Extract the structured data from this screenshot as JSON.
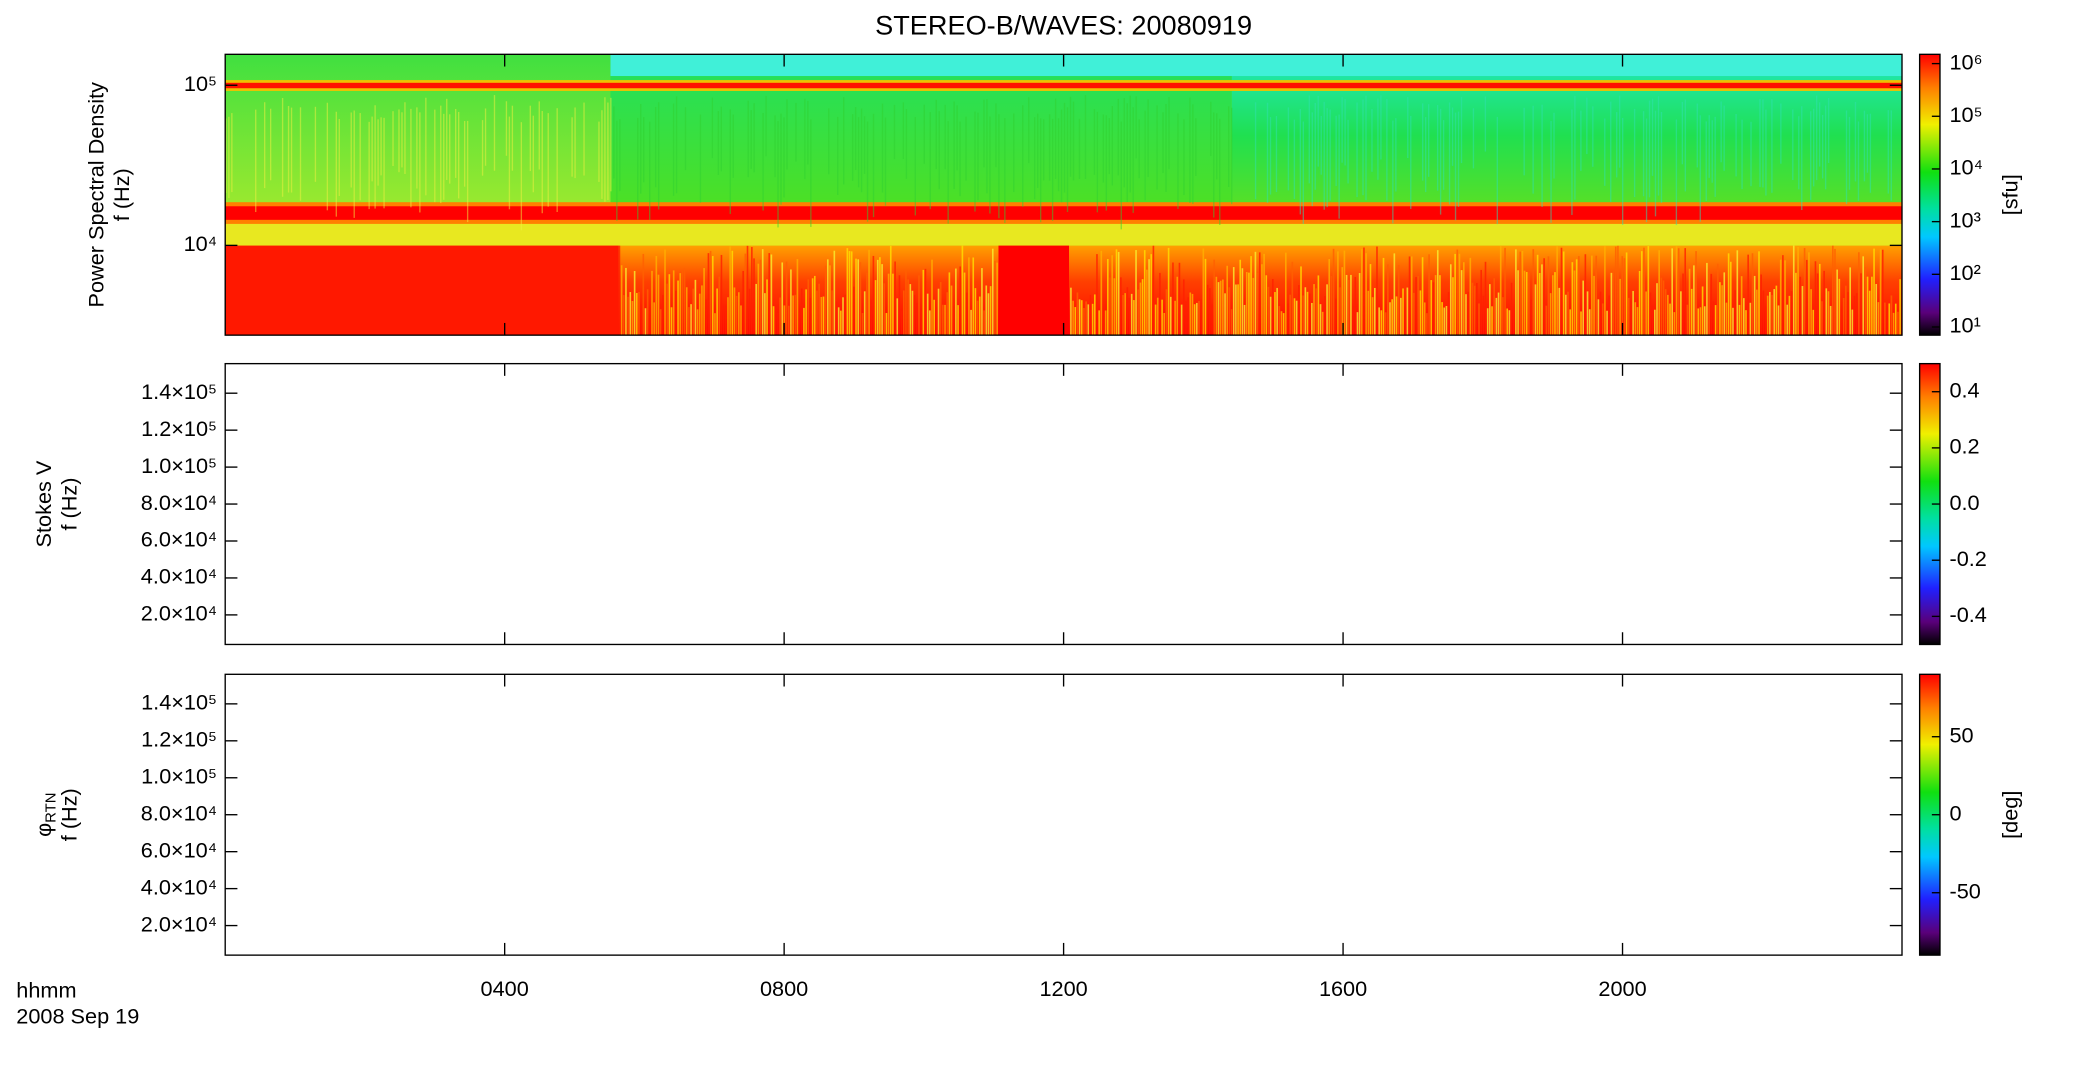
{
  "title": "STEREO-B/WAVES: 20080919",
  "x_axis_label": "hhmm",
  "date_label": "2008 Sep 19",
  "chart_data": [
    {
      "type": "heatmap",
      "ylabel": "Power Spectral Density",
      "ylabel2": "f (Hz)",
      "ylim": [
        2750,
        156000
      ],
      "ylog": true,
      "yticks": [
        {
          "value": 10000,
          "label": "10⁴"
        },
        {
          "value": 100000,
          "label": "10⁵"
        }
      ],
      "colorbar": {
        "lim": [
          7,
          1500000
        ],
        "log": true,
        "label": "[sfu]",
        "ticks": [
          {
            "value": 10,
            "label": "10¹"
          },
          {
            "value": 100,
            "label": "10²"
          },
          {
            "value": 1000,
            "label": "10³"
          },
          {
            "value": 10000,
            "label": "10⁴"
          },
          {
            "value": 100000,
            "label": "10⁵"
          },
          {
            "value": 1000000,
            "label": "10⁶"
          }
        ]
      }
    },
    {
      "type": "heatmap",
      "ylabel": "Stokes V",
      "ylabel2": "f (Hz)",
      "ylim": [
        4000,
        156000
      ],
      "ylog": false,
      "yticks": [
        {
          "value": 20000,
          "label": "2.0×10⁴"
        },
        {
          "value": 40000,
          "label": "4.0×10⁴"
        },
        {
          "value": 60000,
          "label": "6.0×10⁴"
        },
        {
          "value": 80000,
          "label": "8.0×10⁴"
        },
        {
          "value": 100000,
          "label": "1.0×10⁵"
        },
        {
          "value": 120000,
          "label": "1.2×10⁵"
        },
        {
          "value": 140000,
          "label": "1.4×10⁵"
        }
      ],
      "colorbar": {
        "lim": [
          -0.5,
          0.5
        ],
        "log": false,
        "ticks": [
          -0.4,
          -0.2,
          {
            "value": 0,
            "label": "0.0"
          },
          0.2,
          0.4
        ]
      }
    },
    {
      "type": "heatmap",
      "ylabel": "φ",
      "ylabel_sub": "RTN",
      "ylabel2": "f (Hz)",
      "ylim": [
        4000,
        156000
      ],
      "ylog": false,
      "yticks": [
        {
          "value": 20000,
          "label": "2.0×10⁴"
        },
        {
          "value": 40000,
          "label": "4.0×10⁴"
        },
        {
          "value": 60000,
          "label": "6.0×10⁴"
        },
        {
          "value": 80000,
          "label": "8.0×10⁴"
        },
        {
          "value": 100000,
          "label": "1.0×10⁵"
        },
        {
          "value": 120000,
          "label": "1.2×10⁵"
        },
        {
          "value": 140000,
          "label": "1.4×10⁵"
        }
      ],
      "colorbar": {
        "lim": [
          -90,
          90
        ],
        "log": false,
        "label": "[deg]",
        "ticks": [
          -50,
          0,
          50
        ]
      },
      "xlim": [
        0,
        24
      ],
      "xticks": [
        {
          "value": 4,
          "label": "0400"
        },
        {
          "value": 8,
          "label": "0800"
        },
        {
          "value": 12,
          "label": "1200"
        },
        {
          "value": 16,
          "label": "1600"
        },
        {
          "value": 20,
          "label": "2000"
        }
      ]
    }
  ]
}
